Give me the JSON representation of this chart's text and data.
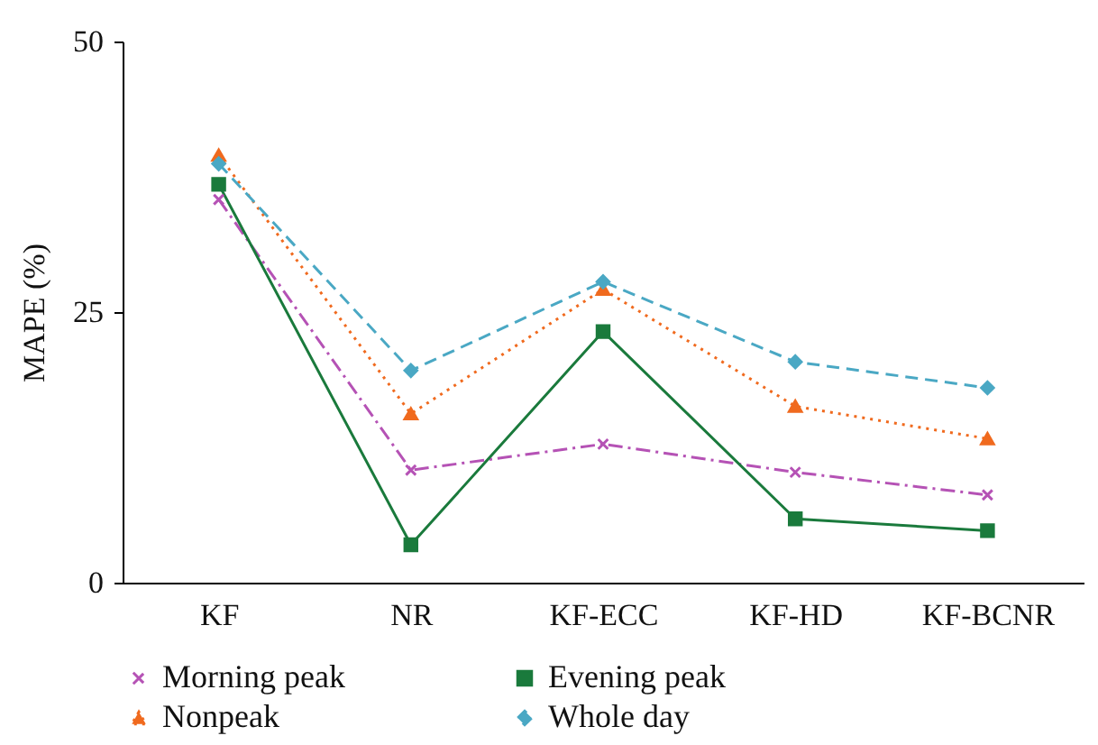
{
  "chart_data": {
    "type": "line",
    "ylabel": "MAPE (%)",
    "categories": [
      "KF",
      "NR",
      "KF-ECC",
      "KF-HD",
      "KF-BCNR"
    ],
    "series": [
      {
        "name": "Morning peak",
        "color": "#b552b5",
        "values": [
          35.4,
          10.4,
          12.8,
          10.2,
          8.1
        ],
        "marker": "cross",
        "line_style": "dashdot"
      },
      {
        "name": "Evening peak",
        "color": "#1a7a3c",
        "values": [
          36.8,
          3.5,
          23.2,
          5.9,
          4.8
        ],
        "marker": "square",
        "line_style": "solid"
      },
      {
        "name": "Nonpeak",
        "color": "#f06a1e",
        "values": [
          39.5,
          15.6,
          27.1,
          16.3,
          13.3
        ],
        "marker": "triangle",
        "line_style": "dotted"
      },
      {
        "name": "Whole day",
        "color": "#4aa8c4",
        "values": [
          38.7,
          19.6,
          27.8,
          20.4,
          18.0
        ],
        "marker": "diamond",
        "line_style": "dashed"
      }
    ],
    "ylim": [
      0,
      50
    ],
    "yticks": [
      0,
      25,
      50
    ],
    "grid": false,
    "legend": "bottom"
  }
}
